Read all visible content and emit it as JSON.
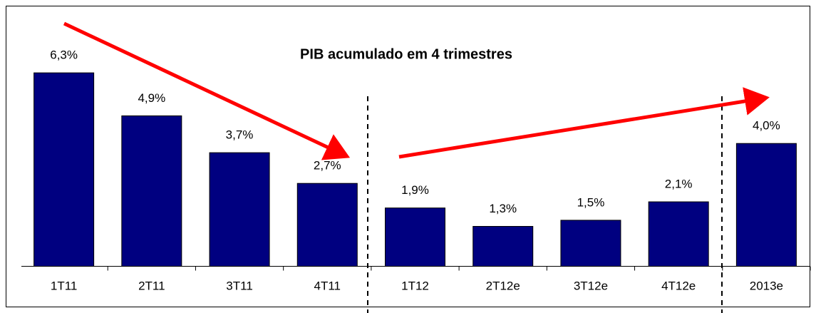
{
  "chart_data": {
    "type": "bar",
    "title": "PIB acumulado em 4 trimestres",
    "categories": [
      "1T11",
      "2T11",
      "3T11",
      "4T11",
      "1T12",
      "2T12e",
      "3T12e",
      "4T12e",
      "2013e"
    ],
    "values": [
      6.3,
      4.9,
      3.7,
      2.7,
      1.9,
      1.3,
      1.5,
      2.1,
      4.0
    ],
    "value_labels": [
      "6,3%",
      "4,9%",
      "3,7%",
      "2,7%",
      "1,9%",
      "1,3%",
      "1,5%",
      "2,1%",
      "4,0%"
    ],
    "color": "#000080",
    "ylim": [
      0,
      7
    ]
  }
}
